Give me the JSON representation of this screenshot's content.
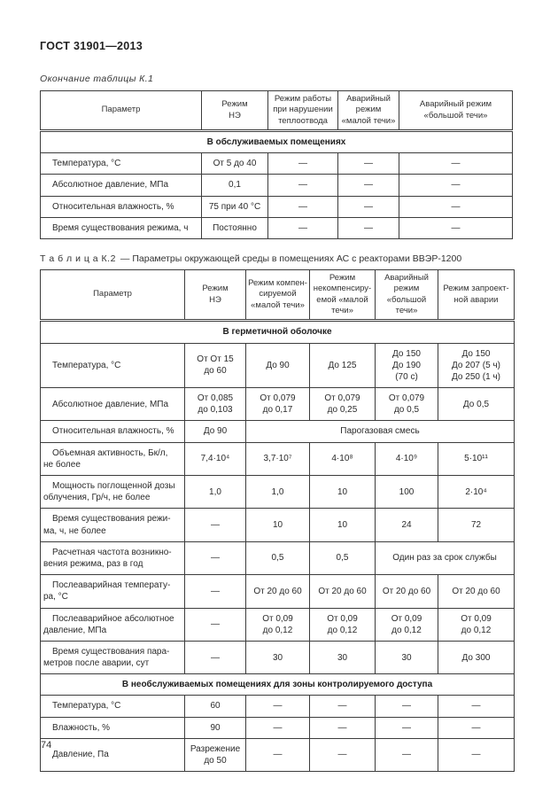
{
  "page": {
    "doc_code": "ГОСТ 31901—2013",
    "table_k1_continuation": "Окончание таблицы К.1",
    "table_k2_caption_label": "Т а б л и ц а  К.2",
    "table_k2_caption_text": "— Параметры окружающей среды в помещениях АС с реакторами ВВЭР-1200",
    "page_number": "74"
  },
  "table_k1": {
    "columns": [
      "Параметр",
      "Режим\nНЭ",
      "Режим работы\nпри нарушении\nтеплоотвода",
      "Аварийный\nрежим\n«малой течи»",
      "Аварийный режим\n«большой течи»"
    ],
    "rows": [
      {
        "section": "В обслуживаемых помещениях"
      },
      {
        "cells": [
          "Температура, °С",
          "От 5 до 40",
          "—",
          "—",
          "—"
        ]
      },
      {
        "cells": [
          "Абсолютное давление, МПа",
          "0,1",
          "—",
          "—",
          "—"
        ]
      },
      {
        "cells": [
          "Относительная влажность, %",
          "75 при 40 °С",
          "—",
          "—",
          "—"
        ]
      },
      {
        "cells": [
          "Время существования режима, ч",
          "Постоянно",
          "—",
          "—",
          "—"
        ]
      }
    ]
  },
  "table_k2": {
    "columns": [
      "Параметр",
      "Режим\nНЭ",
      "Режим компен-\nсируемой\n«малой течи»",
      "Режим\nнекомпенсиру-\nемой «малой\nтечи»",
      "Аварийный\nрежим\n«большой\nтечи»",
      "Режим запроект-\nной аварии"
    ],
    "rows": [
      {
        "section": "В герметичной оболочке"
      },
      {
        "cells": [
          "Температура, °С",
          "От От 15\nдо 60",
          "До 90",
          "До 125",
          "До 150\nДо 190\n(70 с)",
          "До 150\nДо 207 (5 ч)\nДо 250 (1 ч)"
        ]
      },
      {
        "cells": [
          "Абсолютное давление, МПа",
          "От 0,085\nдо 0,103",
          "От 0,079\nдо 0,17",
          "От 0,079\nдо 0,25",
          "От 0,079\nдо 0,5",
          "До 0,5"
        ]
      },
      {
        "cells": [
          "Относительная влажность, %",
          "До 90",
          {
            "t": "Парогазовая смесь",
            "cs": 4
          }
        ]
      },
      {
        "cells": [
          "Объемная активность, Бк/л,\nне более",
          "7,4·10⁴",
          "3,7·10⁷",
          "4·10⁸",
          "4·10⁹",
          "5·10¹¹"
        ]
      },
      {
        "cells": [
          "Мощность поглощенной дозы\nоблучения, Гр/ч, не более",
          "1,0",
          "1,0",
          "10",
          "100",
          "2·10⁴"
        ]
      },
      {
        "cells": [
          "Время существования режи-\nма, ч, не более",
          "—",
          "10",
          "10",
          "24",
          "72"
        ]
      },
      {
        "cells": [
          "Расчетная частота возникно-\nвения режима, раз в год",
          "—",
          "0,5",
          "0,5",
          {
            "t": "Один раз за срок службы",
            "cs": 2
          }
        ]
      },
      {
        "cells": [
          "Послеаварийная температу-\nра, °С",
          "—",
          "От 20 до 60",
          "От 20 до 60",
          "От 20 до 60",
          "От 20 до 60"
        ]
      },
      {
        "cells": [
          "Послеаварийное абсолютное\nдавление, МПа",
          "—",
          "От 0,09\nдо 0,12",
          "От 0,09\nдо 0,12",
          "От 0,09\nдо 0,12",
          "От 0,09\nдо 0,12"
        ]
      },
      {
        "cells": [
          "Время существования пара-\nметров после аварии, сут",
          "—",
          "30",
          "30",
          "30",
          "До 300"
        ]
      },
      {
        "section": "В необслуживаемых помещениях для зоны контролируемого доступа"
      },
      {
        "cells": [
          "Температура, °С",
          "60",
          "—",
          "—",
          "—",
          "—"
        ]
      },
      {
        "cells": [
          "Влажность, %",
          "90",
          "—",
          "—",
          "—",
          "—"
        ]
      },
      {
        "cells": [
          "Давление, Па",
          "Разрежение\nдо 50",
          "—",
          "—",
          "—",
          "—"
        ]
      }
    ]
  }
}
